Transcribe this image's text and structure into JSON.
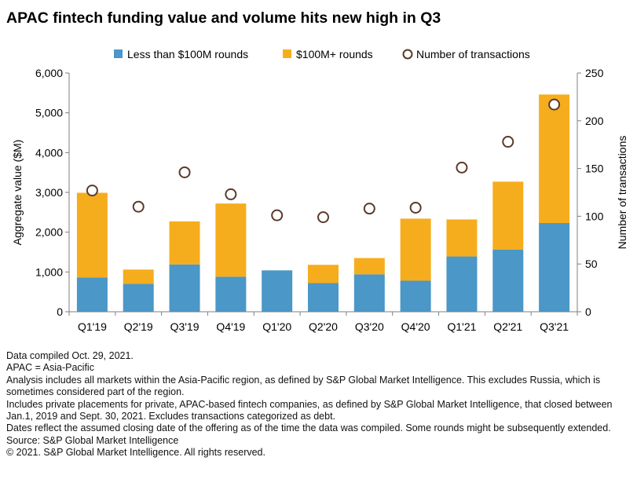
{
  "title": "APAC fintech funding value and volume hits new high in Q3",
  "colors": {
    "small_rounds": "#4a97c8",
    "large_rounds": "#f6ad1d",
    "transactions_fill": "#ffffff",
    "transactions_stroke": "#5a3a2a",
    "axis": "#7f7f7f"
  },
  "chart_data": {
    "type": "bar",
    "stacked": true,
    "categories": [
      "Q1'19",
      "Q2'19",
      "Q3'19",
      "Q4'19",
      "Q1'20",
      "Q2'20",
      "Q3'20",
      "Q4'20",
      "Q1'21",
      "Q2'21",
      "Q3'21"
    ],
    "series": [
      {
        "name": "Less than $100M rounds",
        "axis": "left",
        "values": [
          860,
          700,
          1190,
          880,
          1040,
          720,
          940,
          780,
          1390,
          1560,
          2230
        ]
      },
      {
        "name": "$100M+ rounds",
        "axis": "left",
        "values": [
          2130,
          360,
          1080,
          1840,
          0,
          460,
          410,
          1560,
          930,
          1710,
          3230
        ]
      },
      {
        "name": "Number of transactions",
        "axis": "right",
        "type": "scatter",
        "values": [
          127,
          110,
          146,
          123,
          101,
          99,
          108,
          109,
          151,
          178,
          217
        ]
      }
    ],
    "ylabel": "Aggregate value ($M)",
    "y2label": "Number of transactions",
    "ylim": [
      0,
      6000
    ],
    "y2lim": [
      0,
      250
    ],
    "yticks": [
      "0",
      "1,000",
      "2,000",
      "3,000",
      "4,000",
      "5,000",
      "6,000"
    ],
    "y2ticks": [
      "0",
      "50",
      "100",
      "150",
      "200",
      "250"
    ],
    "legend": "top",
    "grid": false
  },
  "notes": [
    "Data compiled Oct. 29, 2021.",
    "APAC = Asia-Pacific",
    "Analysis includes all markets within the Asia-Pacific region, as defined by S&P Global Market Intelligence. This excludes Russia, which is sometimes considered part of the region.",
    "Includes private placements for private, APAC-based fintech companies, as defined by S&P Global Market Intelligence, that closed between Jan.1, 2019 and Sept. 30, 2021. Excludes transactions categorized as debt.",
    "Dates reflect the assumed closing date of the offering as of the time the data was compiled. Some rounds might be subsequently extended.",
    "Source: S&P Global Market Intelligence",
    "© 2021. S&P Global Market Intelligence. All rights reserved."
  ]
}
